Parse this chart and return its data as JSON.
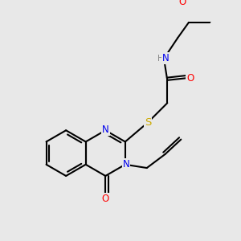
{
  "bg_color": "#e8e8e8",
  "C": "#000000",
  "N": "#0000ee",
  "O": "#ff0000",
  "S": "#ccaa00",
  "H": "#888888",
  "bw": 1.5,
  "fs": 8.5,
  "dbo": 0.012
}
